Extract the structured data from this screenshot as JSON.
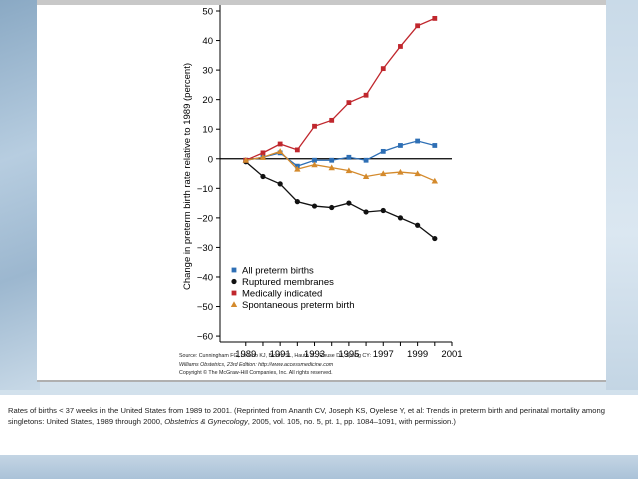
{
  "chart_data": {
    "type": "line",
    "x": [
      1989,
      1990,
      1991,
      1992,
      1993,
      1994,
      1995,
      1996,
      1997,
      1998,
      1999,
      2000
    ],
    "xticks": [
      "1989",
      "1991",
      "1993",
      "1995",
      "1997",
      "1999",
      "2001"
    ],
    "xlim": [
      1987.5,
      2001
    ],
    "ylim": [
      -62,
      50
    ],
    "yticks": [
      "50",
      "40",
      "30",
      "20",
      "10",
      "0",
      "−10",
      "−20",
      "−30",
      "−40",
      "−50",
      "−60"
    ],
    "ylabel": "Change in preterm birth rate relative to 1989 (percent)",
    "series": [
      {
        "name": "All preterm births",
        "color": "#2e6fb5",
        "marker": "square",
        "values": [
          -0.5,
          0.5,
          2,
          -2.5,
          -0.5,
          -0.5,
          0.5,
          -0.5,
          2.5,
          4.5,
          6,
          4.5
        ]
      },
      {
        "name": "Ruptured membranes",
        "color": "#111111",
        "marker": "circle",
        "values": [
          -1,
          -6,
          -8.5,
          -14.5,
          -16,
          -16.5,
          -15,
          -18,
          -17.5,
          -20,
          -22.5,
          -27
        ]
      },
      {
        "name": "Medically indicated",
        "color": "#c0272d",
        "marker": "square",
        "values": [
          -0.5,
          2,
          5,
          3,
          11,
          13,
          19,
          21.5,
          30.5,
          38,
          45,
          47.5
        ]
      },
      {
        "name": "Spontaneous preterm birth",
        "color": "#d48a2c",
        "marker": "triangle",
        "values": [
          -0.5,
          0.5,
          2.5,
          -3.5,
          -2,
          -3,
          -4,
          -6,
          -5,
          -4.5,
          -5,
          -7.5
        ]
      }
    ]
  },
  "source": {
    "line1": "Source: Cunningham FG, Leveno KJ, Bloom SL, Hauth JC, Rouse DJ, Spong CY:",
    "line2": "Williams Obstetrics, 23rd Edition: http://www.accessmedicine.com",
    "line3": "Copyright © The McGraw-Hill Companies, Inc. All rights reserved."
  },
  "caption": {
    "text1": "Rates of births < 37 weeks in the United States from 1989 to 2001. (Reprinted from Ananth CV, Joseph KS, Oyelese Y, et al: Trends in preterm birth and perinatal mortality among singletons: United States, 1989 through 2000, ",
    "journal": "Obstetrics & Gynecology",
    "text2": ", 2005, vol. 105, no. 5, pt. 1, pp. 1084–1091, with permission.)"
  }
}
